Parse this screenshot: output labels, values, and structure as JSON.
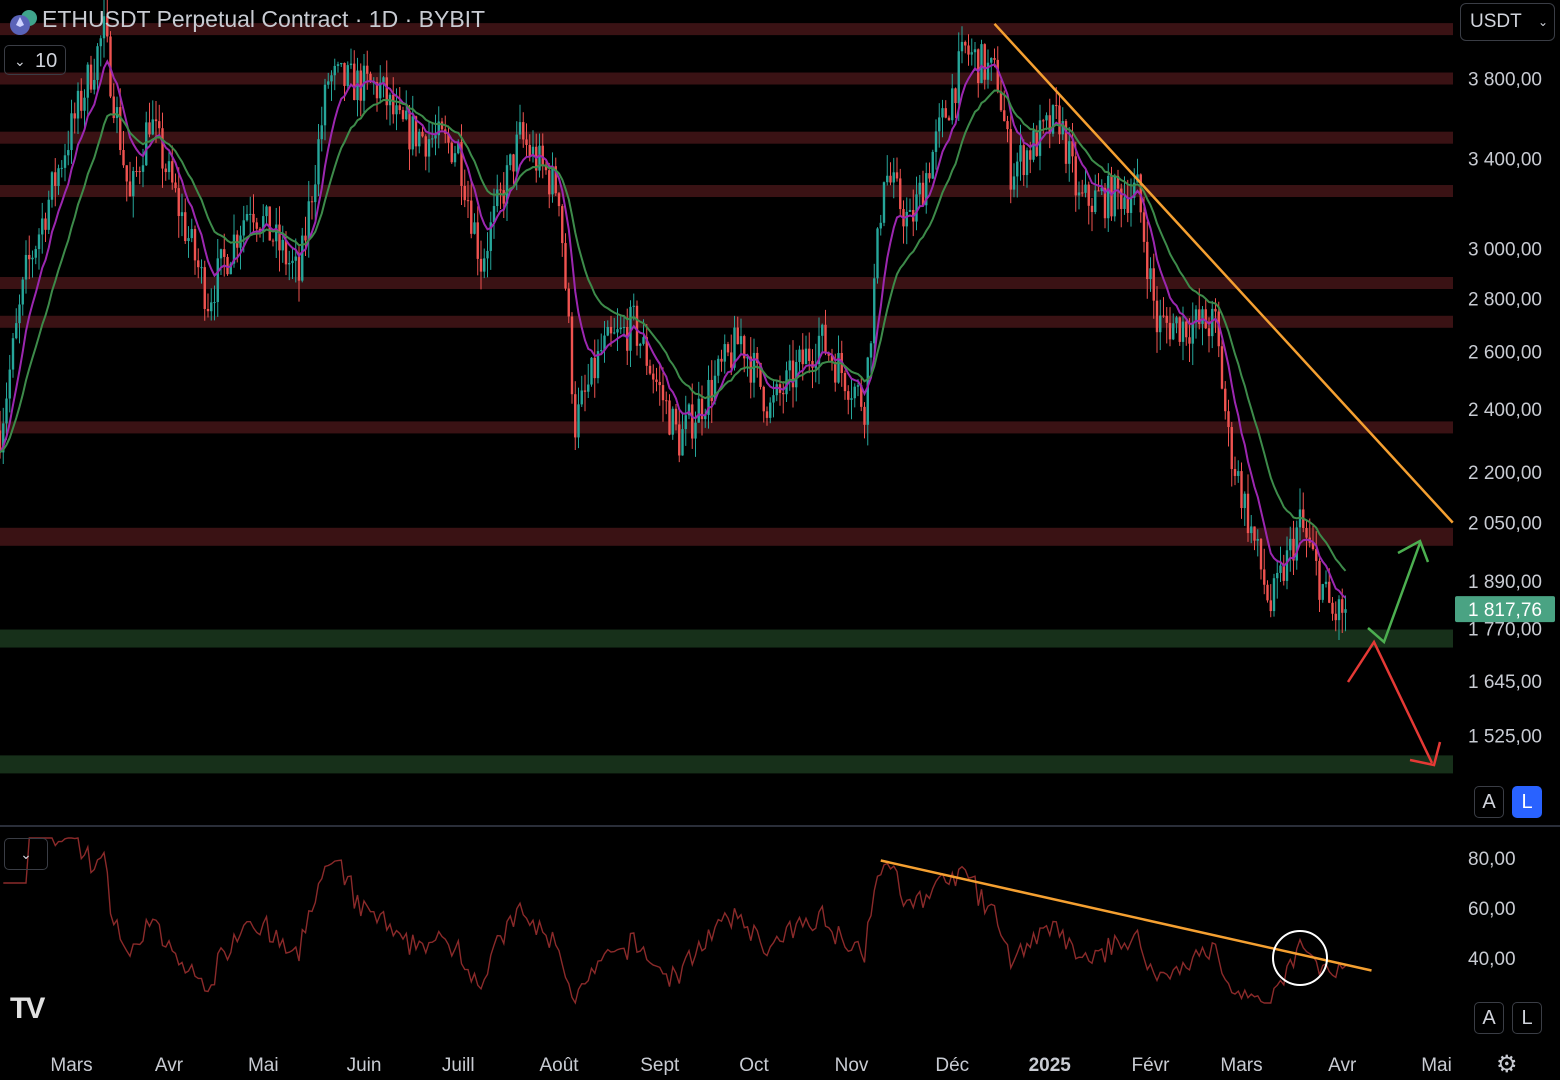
{
  "header": {
    "title": "ETHUSDT Perpetual Contract · 1D · BYBIT",
    "interval_value": "10",
    "currency": "USDT",
    "logo_icon": "eth-bybit-logo-icon"
  },
  "scale_buttons": {
    "auto": "A",
    "log": "L"
  },
  "rsi_buttons": {
    "auto": "A",
    "log": "L"
  },
  "current_price": "1 817,76",
  "colors": {
    "up": "#26a69a",
    "down": "#ef5350",
    "ma_fast": "#9c27b0",
    "ma_slow": "#3d8b4a",
    "zone_res": "#3a1214",
    "zone_sup": "#17301a",
    "trend": "#f5a031",
    "rsi": "#8b2a2a",
    "price_badge": "#4aa383"
  },
  "chart_data": {
    "type": "candlestick",
    "title": "ETHUSDT Perpetual Contract · 1D · BYBIT",
    "yscale": "log",
    "y_ticks": [
      "3 800,00",
      "3 400,00",
      "3 000,00",
      "2 800,00",
      "2 600,00",
      "2 400,00",
      "2 200,00",
      "2 050,00",
      "1 890,00",
      "1 770,00",
      "1 645,00",
      "1 525,00"
    ],
    "y_tick_values": [
      3800,
      3400,
      3000,
      2800,
      2600,
      2400,
      2200,
      2050,
      1890,
      1770,
      1645,
      1525
    ],
    "x_ticks": [
      "Mars",
      "Avr",
      "Mai",
      "Juin",
      "Juill",
      "Août",
      "Sept",
      "Oct",
      "Nov",
      "Déc",
      "2025",
      "Févr",
      "Mars",
      "Avr",
      "Mai"
    ],
    "x_tick_days": [
      22,
      52,
      81,
      112,
      141,
      172,
      203,
      232,
      262,
      293,
      323,
      354,
      382,
      413,
      442
    ],
    "price_anchors_day_price": [
      [
        0,
        2330
      ],
      [
        8,
        2900
      ],
      [
        20,
        3450
      ],
      [
        32,
        4050
      ],
      [
        40,
        3200
      ],
      [
        46,
        3600
      ],
      [
        64,
        2800
      ],
      [
        77,
        3200
      ],
      [
        92,
        2880
      ],
      [
        101,
        3800
      ],
      [
        117,
        3750
      ],
      [
        123,
        3550
      ],
      [
        141,
        3450
      ],
      [
        148,
        2950
      ],
      [
        160,
        3500
      ],
      [
        172,
        3250
      ],
      [
        177,
        2350
      ],
      [
        185,
        2600
      ],
      [
        195,
        2700
      ],
      [
        209,
        2300
      ],
      [
        228,
        2650
      ],
      [
        237,
        2400
      ],
      [
        252,
        2650
      ],
      [
        266,
        2420
      ],
      [
        272,
        3350
      ],
      [
        280,
        3100
      ],
      [
        297,
        3950
      ],
      [
        307,
        3800
      ],
      [
        311,
        3350
      ],
      [
        326,
        3600
      ],
      [
        332,
        3200
      ],
      [
        350,
        3250
      ],
      [
        356,
        2700
      ],
      [
        374,
        2700
      ],
      [
        378,
        2300
      ],
      [
        391,
        1820
      ],
      [
        400,
        2050
      ],
      [
        410,
        1800
      ],
      [
        414,
        1818
      ]
    ],
    "ma_series": [
      {
        "name": "MA fast",
        "period": 9
      },
      {
        "name": "MA slow",
        "period": 21
      }
    ],
    "zones_resistance": [
      4070,
      3800,
      3500,
      3250,
      2860,
      2710,
      2340,
      2010
    ],
    "zones_support": [
      1745,
      1465
    ],
    "trendline_price": {
      "from": [
        306,
        4100
      ],
      "to": [
        447,
        2050
      ]
    },
    "rsi": {
      "y_ticks": [
        "80,00",
        "60,00",
        "40,00"
      ],
      "y_tick_values": [
        80,
        60,
        40
      ],
      "ylim": [
        20,
        100
      ],
      "trendline": {
        "from": [
          271,
          79
        ],
        "to": [
          422,
          35
        ]
      }
    },
    "annotations": [
      "green up arrow (bounce)",
      "red down arrow (breakdown)",
      "circle on RSI"
    ]
  }
}
